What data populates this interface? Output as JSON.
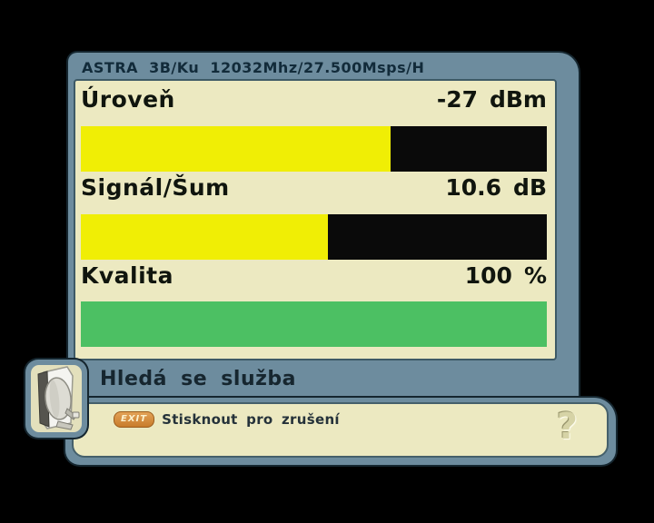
{
  "window": {
    "title": "ASTRA 3B/Ku 12032Mhz/27.500Msps/H"
  },
  "meters": [
    {
      "label": "Úroveň",
      "value": "-27",
      "unit": "dBm",
      "percent": 66.5,
      "color": "#f0ee05"
    },
    {
      "label": "Signál/Šum",
      "value": "10.6",
      "unit": "dB",
      "percent": 53,
      "color": "#f0ee05"
    },
    {
      "label": "Kvalita",
      "value": "100",
      "unit": "%",
      "percent": 100,
      "color": "#4cc063"
    }
  ],
  "status": {
    "message": "Hledá se služba"
  },
  "hint": {
    "key_label": "EXIT",
    "text": "Stisknout pro zrušení"
  },
  "help": {
    "glyph": "?"
  },
  "icons": {
    "dish": "satellite-dish-icon"
  },
  "colors": {
    "panel": "#6d8c9e",
    "panel_edge": "#15262f",
    "content_bg": "#ece9c1",
    "bar_bg": "#0a0a0a",
    "bar_yellow": "#f0ee05",
    "bar_green": "#4cc063",
    "exit_badge": "#c87c2b",
    "label_text": "#10150e",
    "title_text": "#122b3a"
  }
}
